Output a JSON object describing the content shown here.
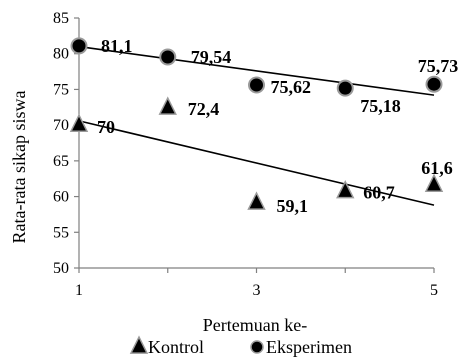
{
  "chart_data": {
    "type": "scatter",
    "xlabel": "Pertemuan ke-",
    "ylabel": "Rata-rata sikap siswa",
    "xlim": [
      1,
      5
    ],
    "ylim": [
      50,
      85
    ],
    "x_ticks": [
      "1",
      "3",
      "5"
    ],
    "y_ticks": [
      "50",
      "55",
      "60",
      "65",
      "70",
      "75",
      "80",
      "85"
    ],
    "grid": false,
    "legend_position": "bottom",
    "series": [
      {
        "name": "Kontrol",
        "marker": "triangle",
        "color": "#000000",
        "x": [
          1,
          2,
          3,
          4,
          5
        ],
        "y": [
          70,
          72.4,
          59.1,
          60.7,
          61.6
        ],
        "labels": [
          "70",
          "72,4",
          "59,1",
          "60,7",
          "61,6"
        ],
        "trendline": {
          "y_start": 70.6,
          "y_end": 58.8
        }
      },
      {
        "name": "Eksperimen",
        "marker": "circle",
        "color": "#000000",
        "x": [
          1,
          2,
          3,
          4,
          5
        ],
        "y": [
          81.1,
          79.54,
          75.62,
          75.18,
          75.73
        ],
        "labels": [
          "81,1",
          "79,54",
          "75,62",
          "75,18",
          "75,73"
        ],
        "trendline": {
          "y_start": 81.0,
          "y_end": 74.2
        }
      }
    ]
  }
}
